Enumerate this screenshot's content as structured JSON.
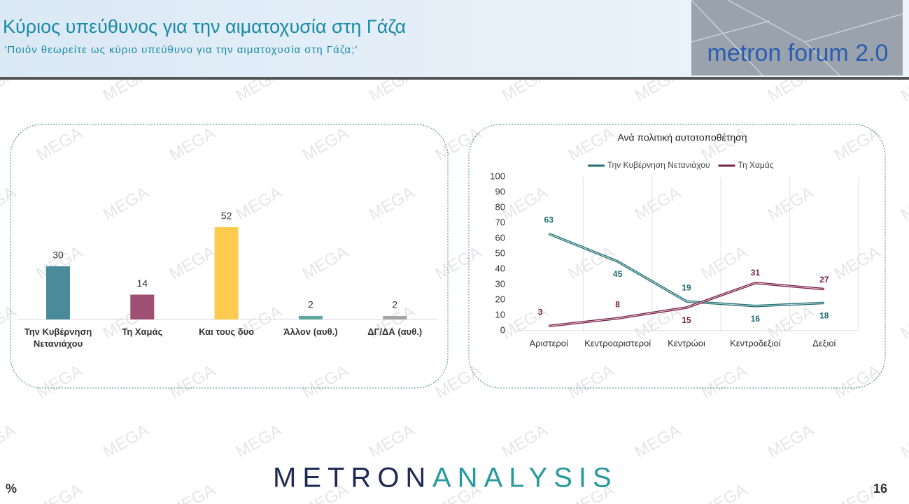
{
  "header": {
    "title": "Κύριος υπεύθυνος για την αιματοχυσία στη Γάζα",
    "subtitle": "‘Ποιόν θεωρείτε ως κύριο υπεύθυνο για την αιματοχυσία στη Γάζα;’",
    "logo": "metron forum 2.0"
  },
  "watermark": "MEGA",
  "chart_data": [
    {
      "type": "bar",
      "categories": [
        "Την Κυβέρνηση Νετανιάχου",
        "Τη Χαμάς",
        "Και τους δυο",
        "Άλλον (αυθ.)",
        "ΔΓ/ΔΑ (αυθ.)"
      ],
      "values": [
        30,
        14,
        52,
        2,
        2
      ],
      "colors": [
        "#4a8a9a",
        "#9e4f72",
        "#fecb4f",
        "#5fa8a0",
        "#a6a6a6"
      ]
    },
    {
      "type": "line",
      "title": "Ανά πολιτική αυτοτοποθέτηση",
      "categories": [
        "Αριστεροί",
        "Κεντροαριστεροί",
        "Κεντρώοι",
        "Κεντροδεξιοί",
        "Δεξιοί"
      ],
      "series": [
        {
          "name": "Την Κυβέρνηση Νετανιάχου",
          "color": "#1f6e72",
          "values": [
            63,
            45,
            19,
            16,
            18
          ]
        },
        {
          "name": "Τη Χαμάς",
          "color": "#7a2048",
          "values": [
            3,
            8,
            15,
            31,
            27
          ]
        }
      ],
      "ylim": [
        0,
        100
      ],
      "yticks": [
        0,
        10,
        20,
        30,
        40,
        50,
        60,
        70,
        80,
        90,
        100
      ],
      "grid": true,
      "legend": "top"
    }
  ],
  "footer": {
    "brand_left": "METRON",
    "brand_right": "ANALYSIS",
    "unit": "%",
    "page": "16"
  }
}
